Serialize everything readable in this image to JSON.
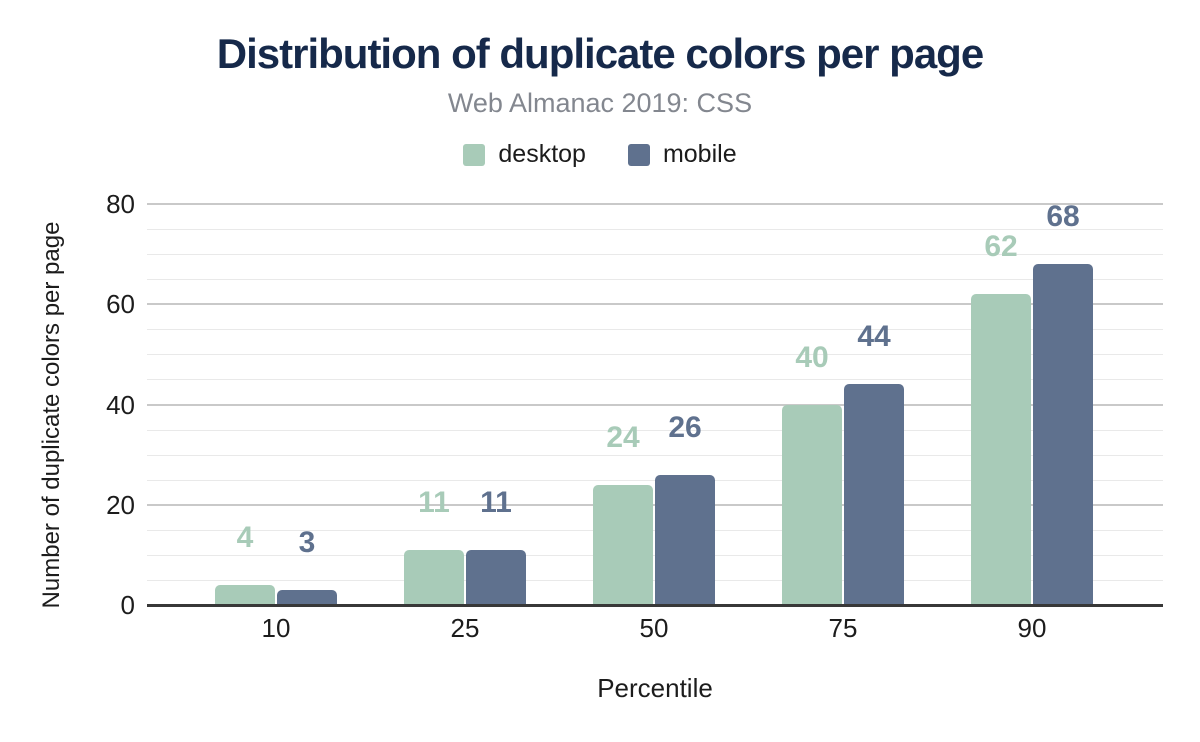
{
  "chart_data": {
    "type": "bar",
    "title": "Distribution of duplicate colors per page",
    "subtitle": "Web Almanac 2019: CSS",
    "xlabel": "Percentile",
    "ylabel": "Number of duplicate colors per page",
    "categories": [
      "10",
      "25",
      "50",
      "75",
      "90"
    ],
    "series": [
      {
        "name": "desktop",
        "color": "#a8cbb8",
        "values": [
          4,
          11,
          24,
          40,
          62
        ]
      },
      {
        "name": "mobile",
        "color": "#5f718e",
        "values": [
          3,
          11,
          26,
          44,
          68
        ]
      }
    ],
    "ylim": [
      0,
      80
    ],
    "yticks": [
      0,
      20,
      40,
      60,
      80
    ],
    "minor_gridline_step": 5,
    "grid": true,
    "legend_position": "top",
    "value_labels": true
  },
  "colors": {
    "background": "#ffffff",
    "title": "#16294a",
    "subtitle": "#83878f",
    "tick_text": "#1c1c1c",
    "axis_title_text": "#1c1c1c",
    "legend_text": "#1c1c1c",
    "axis_line": "#383838",
    "grid_major": "#c9c9c9",
    "grid_minor": "#e9e9e9"
  }
}
